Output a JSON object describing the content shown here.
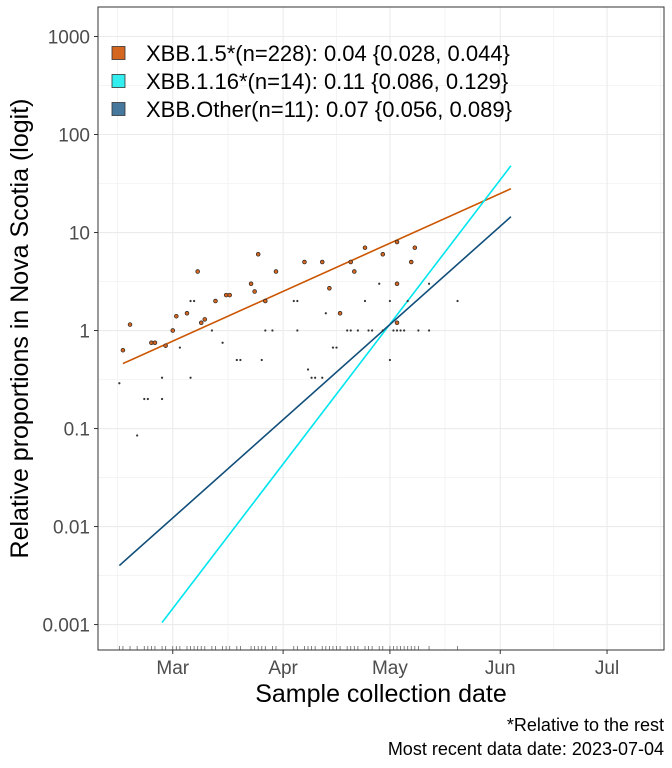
{
  "chart_data": {
    "type": "scatter",
    "title": "",
    "xlabel": "Sample collection date",
    "ylabel": "Relative proportions in Nova Scotia (logit)",
    "x_scale": "date",
    "y_scale": "log10",
    "xlim": [
      "2023-02-08",
      "2023-07-17"
    ],
    "ylim": [
      0.00055,
      2000
    ],
    "x_ticks": [
      {
        "date": "2023-03-01",
        "label": "Mar"
      },
      {
        "date": "2023-04-01",
        "label": "Apr"
      },
      {
        "date": "2023-05-01",
        "label": "May"
      },
      {
        "date": "2023-06-01",
        "label": "Jun"
      },
      {
        "date": "2023-07-01",
        "label": "Jul"
      }
    ],
    "y_ticks": [
      {
        "value": 0.001,
        "label": "0.001"
      },
      {
        "value": 0.01,
        "label": "0.01"
      },
      {
        "value": 0.1,
        "label": "0.1"
      },
      {
        "value": 1,
        "label": "1"
      },
      {
        "value": 10,
        "label": "10"
      },
      {
        "value": 100,
        "label": "100"
      },
      {
        "value": 1000,
        "label": "1000"
      }
    ],
    "grid": true,
    "legend_position": "top-left",
    "series": [
      {
        "name": "XBB.1.5*(n=228): 0.04 {0.028, 0.044}",
        "color": "#d4661f",
        "line_color": "#cc5500",
        "fit_line": [
          {
            "x": "2023-02-15",
            "y": 0.46
          },
          {
            "x": "2023-06-04",
            "y": 28
          }
        ],
        "points": [
          {
            "x": "2023-02-15",
            "y": 0.63
          },
          {
            "x": "2023-02-17",
            "y": 1.15
          },
          {
            "x": "2023-02-23",
            "y": 0.75
          },
          {
            "x": "2023-02-24",
            "y": 0.75
          },
          {
            "x": "2023-02-27",
            "y": 0.7
          },
          {
            "x": "2023-03-01",
            "y": 1.0
          },
          {
            "x": "2023-03-02",
            "y": 1.4
          },
          {
            "x": "2023-03-05",
            "y": 1.5
          },
          {
            "x": "2023-03-08",
            "y": 4.0
          },
          {
            "x": "2023-03-09",
            "y": 1.2
          },
          {
            "x": "2023-03-10",
            "y": 1.3
          },
          {
            "x": "2023-03-13",
            "y": 2.0
          },
          {
            "x": "2023-03-16",
            "y": 2.3
          },
          {
            "x": "2023-03-17",
            "y": 2.3
          },
          {
            "x": "2023-03-23",
            "y": 3.0
          },
          {
            "x": "2023-03-24",
            "y": 2.5
          },
          {
            "x": "2023-03-25",
            "y": 6.0
          },
          {
            "x": "2023-03-27",
            "y": 2.0
          },
          {
            "x": "2023-03-30",
            "y": 4.0
          },
          {
            "x": "2023-04-07",
            "y": 5.0
          },
          {
            "x": "2023-04-12",
            "y": 5.0
          },
          {
            "x": "2023-04-14",
            "y": 2.7
          },
          {
            "x": "2023-04-17",
            "y": 1.5
          },
          {
            "x": "2023-04-20",
            "y": 5.0
          },
          {
            "x": "2023-04-21",
            "y": 4.0
          },
          {
            "x": "2023-04-24",
            "y": 7.0
          },
          {
            "x": "2023-04-29",
            "y": 6.0
          },
          {
            "x": "2023-05-03",
            "y": 3.0
          },
          {
            "x": "2023-05-03",
            "y": 1.2
          },
          {
            "x": "2023-05-03",
            "y": 8.0
          },
          {
            "x": "2023-05-07",
            "y": 5.0
          },
          {
            "x": "2023-05-08",
            "y": 7.0
          }
        ]
      },
      {
        "name": "XBB.1.16*(n=14): 0.11 {0.086, 0.129}",
        "color": "#33eeee",
        "line_color": "#00e5ee",
        "fit_line": [
          {
            "x": "2023-02-26",
            "y": 0.00105
          },
          {
            "x": "2023-06-04",
            "y": 48
          }
        ],
        "points": []
      },
      {
        "name": "XBB.Other(n=11): 0.07 {0.056, 0.089}",
        "color": "#46789e",
        "line_color": "#104e7a",
        "fit_line": [
          {
            "x": "2023-02-14",
            "y": 0.004
          },
          {
            "x": "2023-06-04",
            "y": 14.5
          }
        ],
        "points": []
      }
    ],
    "other_points": [
      {
        "x": "2023-02-14",
        "y": 0.29
      },
      {
        "x": "2023-02-19",
        "y": 0.085
      },
      {
        "x": "2023-02-21",
        "y": 0.2
      },
      {
        "x": "2023-02-22",
        "y": 0.2
      },
      {
        "x": "2023-02-26",
        "y": 0.2
      },
      {
        "x": "2023-02-26",
        "y": 0.33
      },
      {
        "x": "2023-03-03",
        "y": 0.67
      },
      {
        "x": "2023-03-06",
        "y": 0.33
      },
      {
        "x": "2023-03-06",
        "y": 2.0
      },
      {
        "x": "2023-03-07",
        "y": 2.0
      },
      {
        "x": "2023-03-12",
        "y": 1.0
      },
      {
        "x": "2023-03-15",
        "y": 0.75
      },
      {
        "x": "2023-03-19",
        "y": 0.5
      },
      {
        "x": "2023-03-20",
        "y": 0.5
      },
      {
        "x": "2023-03-26",
        "y": 0.5
      },
      {
        "x": "2023-03-27",
        "y": 1.0
      },
      {
        "x": "2023-03-29",
        "y": 1.0
      },
      {
        "x": "2023-04-04",
        "y": 2.0
      },
      {
        "x": "2023-04-05",
        "y": 2.0
      },
      {
        "x": "2023-04-05",
        "y": 1.0
      },
      {
        "x": "2023-04-08",
        "y": 0.4
      },
      {
        "x": "2023-04-09",
        "y": 0.33
      },
      {
        "x": "2023-04-10",
        "y": 0.33
      },
      {
        "x": "2023-04-12",
        "y": 0.33
      },
      {
        "x": "2023-04-13",
        "y": 1.5
      },
      {
        "x": "2023-04-15",
        "y": 0.67
      },
      {
        "x": "2023-04-16",
        "y": 0.67
      },
      {
        "x": "2023-04-19",
        "y": 1.0
      },
      {
        "x": "2023-04-20",
        "y": 1.0
      },
      {
        "x": "2023-04-22",
        "y": 1.0
      },
      {
        "x": "2023-04-24",
        "y": 2.0
      },
      {
        "x": "2023-04-25",
        "y": 1.0
      },
      {
        "x": "2023-04-26",
        "y": 1.0
      },
      {
        "x": "2023-04-28",
        "y": 3.0
      },
      {
        "x": "2023-04-29",
        "y": 1.0
      },
      {
        "x": "2023-05-01",
        "y": 2.0
      },
      {
        "x": "2023-05-01",
        "y": 0.5
      },
      {
        "x": "2023-05-02",
        "y": 1.0
      },
      {
        "x": "2023-05-03",
        "y": 1.0
      },
      {
        "x": "2023-05-04",
        "y": 1.0
      },
      {
        "x": "2023-05-05",
        "y": 1.0
      },
      {
        "x": "2023-05-06",
        "y": 2.0
      },
      {
        "x": "2023-05-09",
        "y": 1.0
      },
      {
        "x": "2023-05-12",
        "y": 1.0
      },
      {
        "x": "2023-05-12",
        "y": 3.0
      },
      {
        "x": "2023-05-20",
        "y": 2.0
      }
    ],
    "caption": [
      "*Relative to the rest",
      "Most recent data date: 2023-07-04"
    ]
  }
}
